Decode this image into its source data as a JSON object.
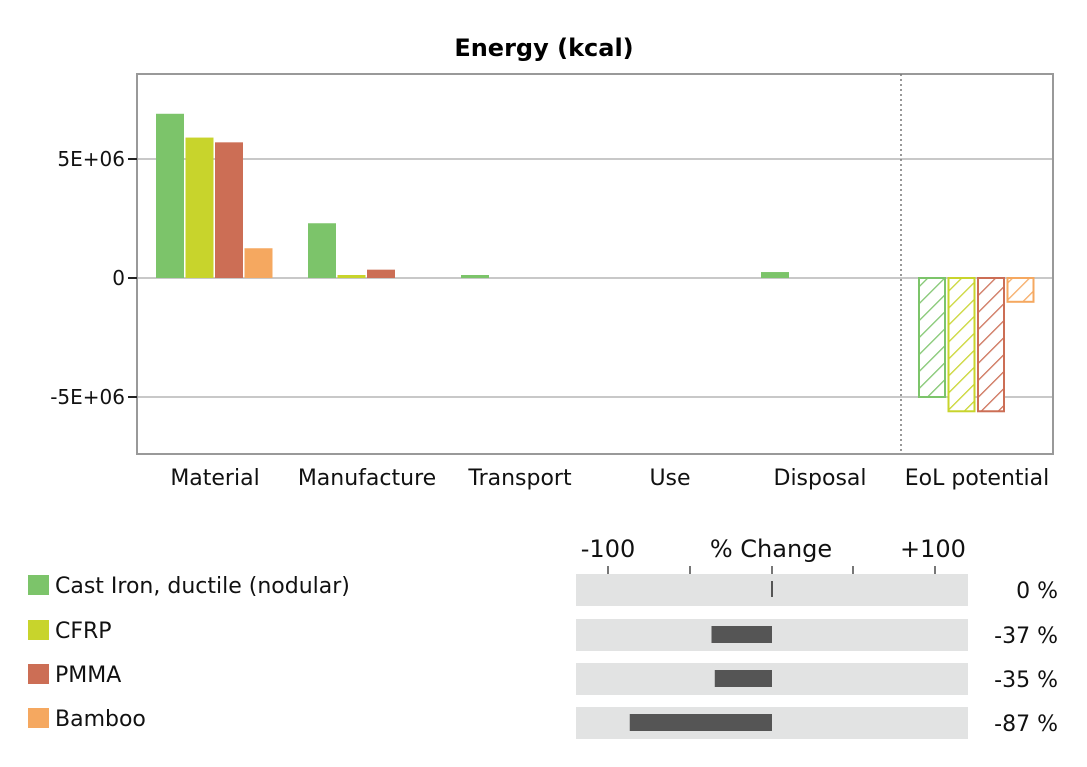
{
  "chart_data": {
    "type": "bar",
    "title": "Energy (kcal)",
    "categories": [
      "Material",
      "Manufacture",
      "Transport",
      "Use",
      "Disposal",
      "EoL potential"
    ],
    "yticks": [
      {
        "value": 5000000,
        "label": "5E+06"
      },
      {
        "value": 0,
        "label": "0"
      },
      {
        "value": -5000000,
        "label": "-5E+06"
      }
    ],
    "ylim": [
      -7300000,
      8700000
    ],
    "grid": true,
    "hatched_category": "EoL potential",
    "series": [
      {
        "name": "Cast Iron, ductile (nodular)",
        "color": "#7cc46a",
        "values": [
          6900000,
          2300000,
          120000,
          0,
          250000,
          -5000000
        ]
      },
      {
        "name": "CFRP",
        "color": "#c8d42c",
        "values": [
          5900000,
          100000,
          0,
          0,
          0,
          -5600000
        ]
      },
      {
        "name": "PMMA",
        "color": "#cc6e55",
        "values": [
          5700000,
          350000,
          0,
          0,
          0,
          -5600000
        ]
      },
      {
        "name": "Bamboo",
        "color": "#f5a860",
        "values": [
          1250000,
          0,
          0,
          0,
          0,
          -1000000
        ]
      }
    ]
  },
  "pct_change": {
    "axis_label": "% Change",
    "min_label": "-100",
    "max_label": "+100",
    "items": [
      {
        "value": 0,
        "label": "0 %"
      },
      {
        "value": -37,
        "label": "-37 %"
      },
      {
        "value": -35,
        "label": "-35 %"
      },
      {
        "value": -87,
        "label": "-87 %"
      }
    ]
  }
}
